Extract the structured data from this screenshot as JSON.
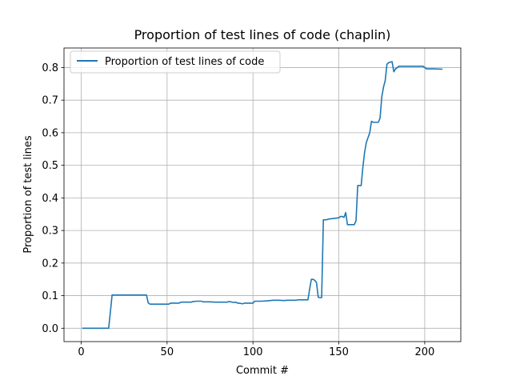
{
  "chart_data": {
    "type": "line",
    "title": "Proportion of test lines of code (chaplin)",
    "xlabel": "Commit #",
    "ylabel": "Proportion of test lines",
    "xlim": [
      -10,
      221
    ],
    "ylim": [
      -0.041,
      0.86
    ],
    "xticks": [
      0,
      50,
      100,
      150,
      200
    ],
    "yticks": [
      0.0,
      0.1,
      0.2,
      0.3,
      0.4,
      0.5,
      0.6,
      0.7,
      0.8
    ],
    "xtick_labels": [
      "0",
      "50",
      "100",
      "150",
      "200"
    ],
    "ytick_labels": [
      "0.0",
      "0.1",
      "0.2",
      "0.3",
      "0.4",
      "0.5",
      "0.6",
      "0.7",
      "0.8"
    ],
    "grid": true,
    "legend_position": "top-left",
    "color": "#1f77b4",
    "series": [
      {
        "name": "Proportion of test lines of code",
        "x": [
          1,
          16,
          17,
          18,
          25,
          30,
          37,
          38,
          39,
          40,
          45,
          50,
          51,
          52,
          55,
          57,
          58,
          60,
          62,
          64,
          65,
          66,
          67,
          70,
          71,
          72,
          75,
          78,
          80,
          82,
          85,
          86,
          87,
          89,
          90,
          91,
          92,
          94,
          95,
          100,
          101,
          102,
          105,
          108,
          110,
          112,
          115,
          118,
          120,
          125,
          126,
          127,
          130,
          132,
          133,
          134,
          135,
          136,
          137,
          138,
          139,
          140,
          141,
          142,
          143,
          144,
          147,
          150,
          151,
          152,
          153,
          154,
          155,
          156,
          157,
          159,
          160,
          161,
          162,
          163,
          164,
          165,
          166,
          167,
          168,
          169,
          170,
          171,
          172,
          173,
          174,
          175,
          176,
          177,
          178,
          179,
          180,
          181,
          182,
          183,
          185,
          190,
          198,
          199,
          201,
          205,
          210
        ],
        "y": [
          0.0,
          0.0,
          0.05,
          0.102,
          0.102,
          0.102,
          0.102,
          0.102,
          0.078,
          0.074,
          0.074,
          0.074,
          0.074,
          0.077,
          0.077,
          0.077,
          0.08,
          0.08,
          0.08,
          0.08,
          0.082,
          0.082,
          0.083,
          0.083,
          0.081,
          0.081,
          0.081,
          0.08,
          0.08,
          0.08,
          0.08,
          0.082,
          0.081,
          0.079,
          0.08,
          0.077,
          0.077,
          0.075,
          0.077,
          0.077,
          0.083,
          0.083,
          0.083,
          0.084,
          0.085,
          0.086,
          0.086,
          0.085,
          0.086,
          0.086,
          0.087,
          0.087,
          0.087,
          0.087,
          0.12,
          0.15,
          0.15,
          0.147,
          0.14,
          0.095,
          0.094,
          0.094,
          0.333,
          0.333,
          0.333,
          0.335,
          0.337,
          0.339,
          0.343,
          0.343,
          0.34,
          0.355,
          0.318,
          0.318,
          0.318,
          0.318,
          0.33,
          0.438,
          0.438,
          0.438,
          0.495,
          0.54,
          0.57,
          0.585,
          0.6,
          0.635,
          0.632,
          0.632,
          0.632,
          0.632,
          0.645,
          0.71,
          0.74,
          0.76,
          0.81,
          0.815,
          0.817,
          0.818,
          0.787,
          0.796,
          0.804,
          0.804,
          0.804,
          0.804,
          0.796,
          0.796,
          0.795
        ]
      }
    ]
  }
}
